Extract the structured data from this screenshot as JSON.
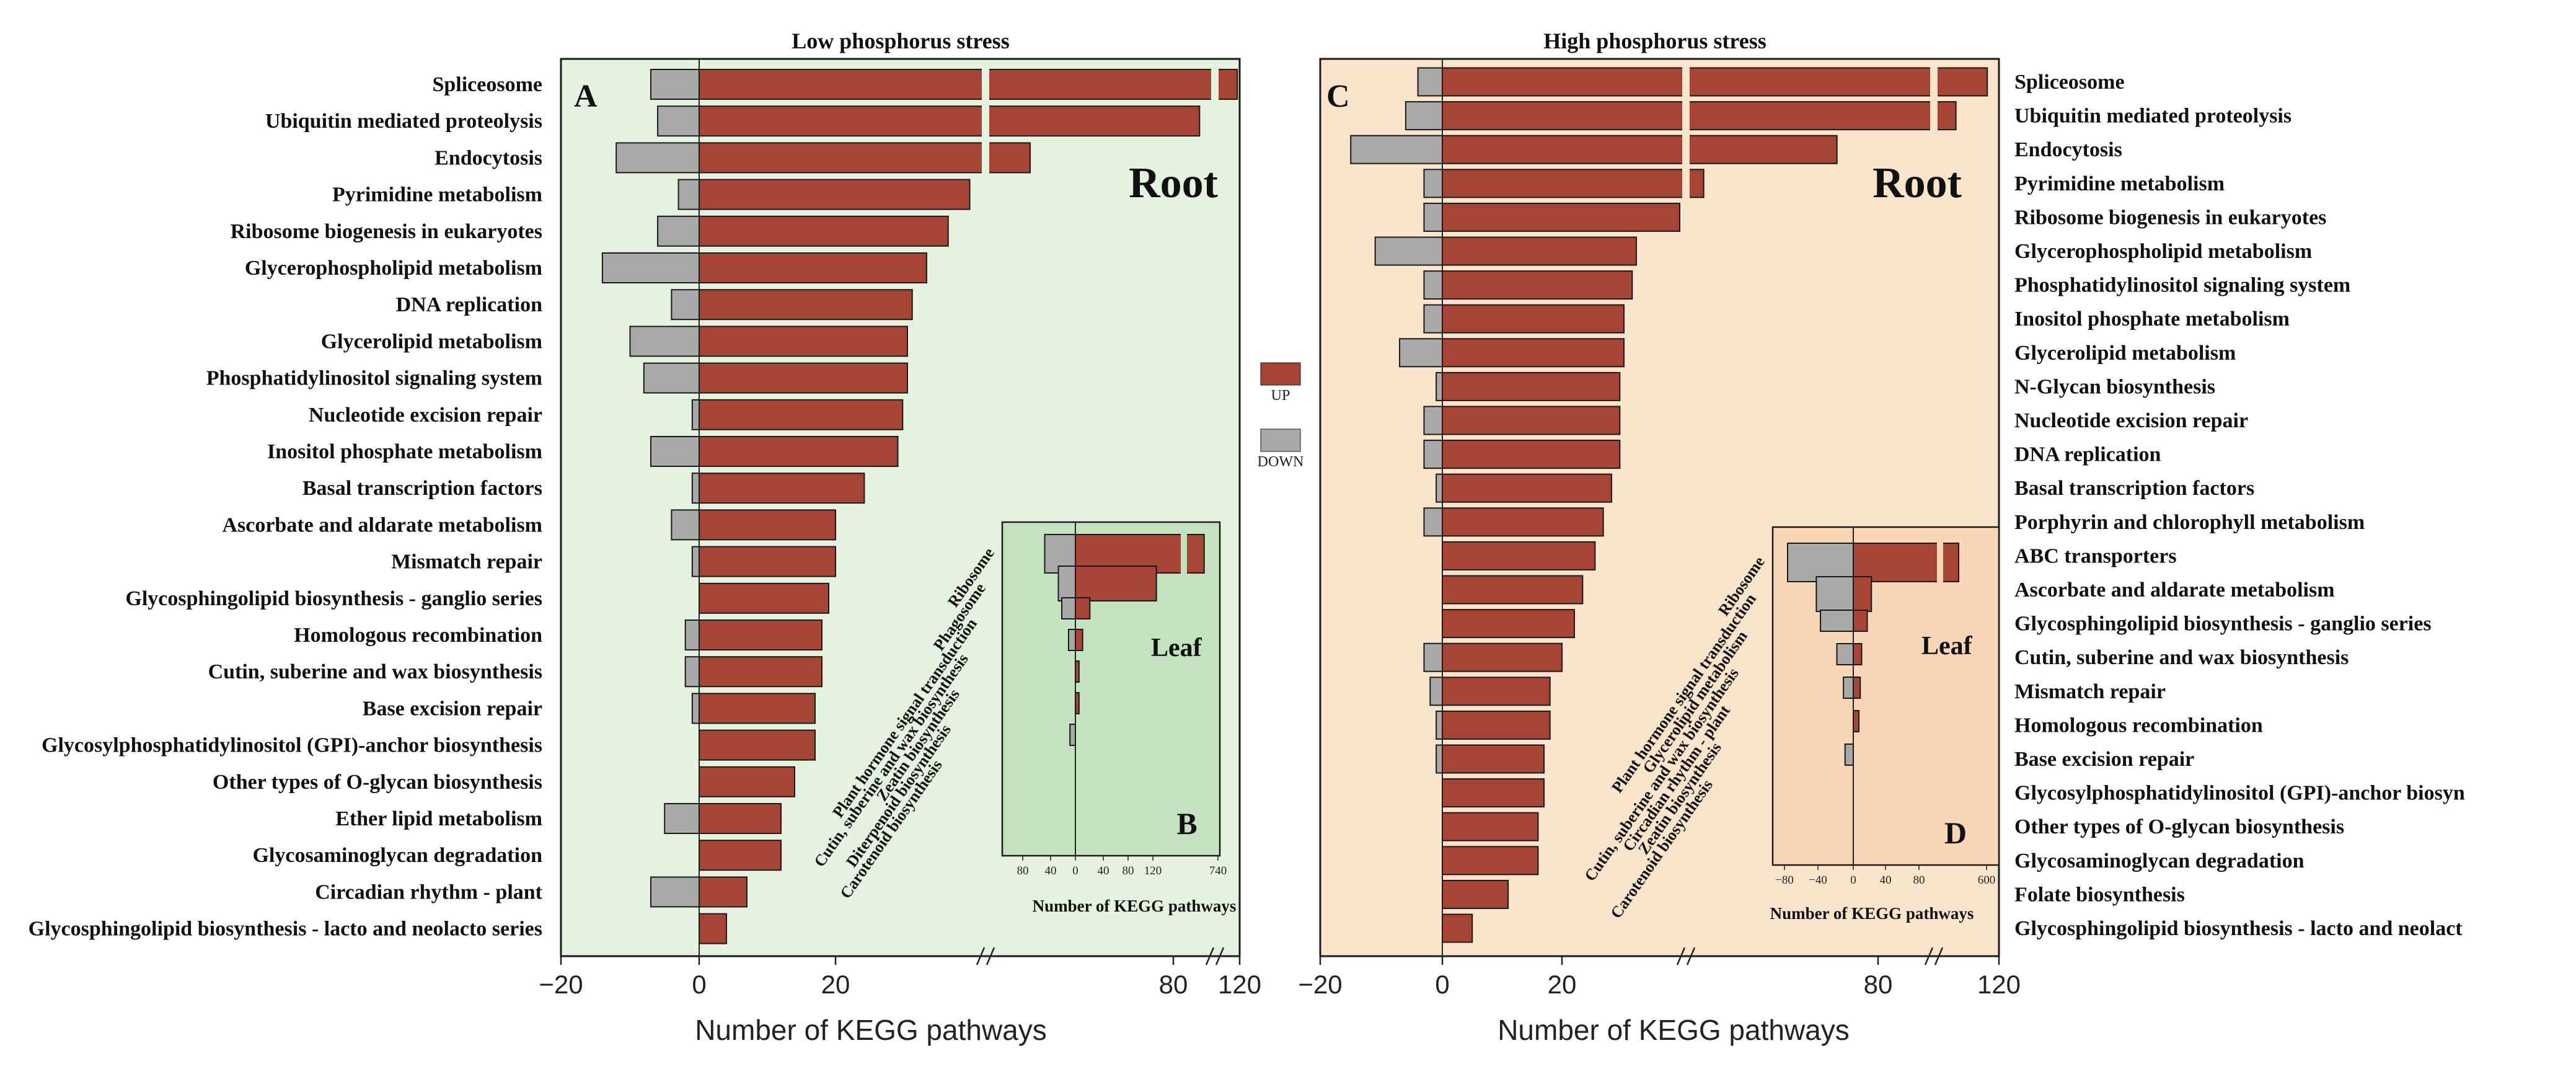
{
  "colors": {
    "up": "#a64436",
    "down": "#a9a9a9",
    "root_bg_A": "#e6f2e0",
    "leaf_bg_B": "#c4e2c0",
    "root_bg_C": "#fbe4cc",
    "leaf_bg_D": "#f8d6b6",
    "edge": "#1a1a1a"
  },
  "legend": {
    "up": "UP",
    "down": "DOWN"
  },
  "chart_data": [
    {
      "panel": "A",
      "type": "bar",
      "orientation": "horizontal",
      "title": "Low phosphorus stress",
      "tissue": "Root",
      "xlabel": "Number of KEGG pathways",
      "xlim": [
        -20,
        120
      ],
      "axis_breaks": true,
      "x_ticks": [
        {
          "v": -20,
          "label": "−20"
        },
        {
          "v": 0,
          "label": "0"
        },
        {
          "v": 20,
          "label": "20"
        },
        {
          "v": 80,
          "label": "80"
        },
        {
          "v": 120,
          "label": "120"
        }
      ],
      "categories": [
        "Spliceosome",
        "Ubiquitin mediated proteolysis",
        "Endocytosis",
        "Pyrimidine metabolism",
        "Ribosome biogenesis in eukaryotes",
        "Glycerophospholipid metabolism",
        "DNA replication",
        "Glycerolipid metabolism",
        "Phosphatidylinositol signaling system",
        "Nucleotide excision repair",
        "Inositol phosphate metabolism",
        "Basal transcription factors",
        "Ascorbate and aldarate metabolism",
        "Mismatch repair",
        "Glycosphingolipid biosynthesis - ganglio series",
        "Homologous recombination",
        "Cutin, suberine and wax biosynthesis",
        "Base excision repair",
        "Glycosylphosphatidylinositol (GPI)-anchor biosynthesis",
        "Other types of O-glycan biosynthesis",
        "Ether lipid metabolism",
        "Glycosaminoglycan degradation",
        "Circadian rhythm - plant",
        "Glycosphingolipid biosynthesis - lacto and neolacto series"
      ],
      "series": [
        {
          "name": "UP",
          "values": [
            105,
            76,
            56,
            48,
            43.5,
            39,
            36,
            35,
            35,
            34,
            33,
            26,
            20,
            20,
            19,
            18,
            18,
            17,
            17,
            14,
            12,
            12,
            7,
            4
          ]
        },
        {
          "name": "DOWN",
          "values": [
            -7,
            -6,
            -12,
            -3,
            -6,
            -14,
            -4,
            -10,
            -8,
            -1,
            -7,
            -1,
            -4,
            -1,
            0,
            -2,
            -2,
            -1,
            0,
            0,
            -5,
            0,
            -7,
            0
          ]
        }
      ]
    },
    {
      "panel": "B",
      "type": "bar",
      "orientation": "horizontal",
      "inset": true,
      "tissue": "Leaf",
      "xlabel": "Number of KEGG pathways",
      "x_ticks": [
        {
          "v": -80,
          "label": "80"
        },
        {
          "v": -40,
          "label": "40"
        },
        {
          "v": 0,
          "label": "0"
        },
        {
          "v": 40,
          "label": "40"
        },
        {
          "v": 80,
          "label": "80"
        },
        {
          "v": 120,
          "label": "120"
        },
        {
          "v": 740,
          "label": "740"
        }
      ],
      "categories": [
        "Ribosome",
        "Phagosome",
        "Plant hormone signal transduction",
        "Cutin, suberine and wax biosynthesis",
        "Zeatin biosynthesis",
        "Diterpenoid biosynthesis",
        "Carotenoid biosynthesis"
      ],
      "series": [
        {
          "name": "UP",
          "values": [
            720,
            112,
            20,
            10,
            5,
            5,
            0
          ]
        },
        {
          "name": "DOWN",
          "values": [
            -45,
            -25,
            -20,
            -10,
            0,
            0,
            -8
          ]
        }
      ]
    },
    {
      "panel": "C",
      "type": "bar",
      "orientation": "horizontal",
      "title": "High phosphorus stress",
      "tissue": "Root",
      "xlabel": "Number of KEGG pathways",
      "xlim": [
        -20,
        120
      ],
      "axis_breaks": true,
      "x_ticks": [
        {
          "v": -20,
          "label": "−20"
        },
        {
          "v": 0,
          "label": "0"
        },
        {
          "v": 20,
          "label": "20"
        },
        {
          "v": 80,
          "label": "80"
        },
        {
          "v": 120,
          "label": "120"
        }
      ],
      "categories": [
        "Spliceosome",
        "Ubiquitin mediated proteolysis",
        "Endocytosis",
        "Pyrimidine metabolism",
        "Ribosome biogenesis in eukaryotes",
        "Glycerophospholipid metabolism",
        "Phosphatidylinositol signaling system",
        "Inositol phosphate metabolism",
        "Glycerolipid metabolism",
        "N-Glycan biosynthesis",
        "Nucleotide excision repair",
        "DNA replication",
        "Basal transcription factors",
        "Porphyrin and chlorophyll metabolism",
        "ABC transporters",
        "Ascorbate and aldarate metabolism",
        "Glycosphingolipid biosynthesis - ganglio series",
        "Cutin, suberine and wax biosynthesis",
        "Mismatch repair",
        "Homologous recombination",
        "Base excision repair",
        "Glycosylphosphatidylinositol (GPI)-anchor biosyn",
        "Other types of O-glycan biosynthesis",
        "Glycosaminoglycan degradation",
        "Folate biosynthesis",
        "Glycosphingolipid biosynthesis - lacto and neolact"
      ],
      "series": [
        {
          "name": "UP",
          "values": [
            110,
            83,
            67,
            52,
            48.5,
            38,
            37,
            35,
            35,
            34,
            34,
            34,
            32,
            30,
            28,
            25,
            23,
            20,
            18,
            18,
            17,
            17,
            16,
            16,
            11,
            5
          ]
        },
        {
          "name": "DOWN",
          "values": [
            -4,
            -6,
            -15,
            -3,
            -3,
            -11,
            -3,
            -3,
            -7,
            -1,
            -3,
            -3,
            -1,
            -3,
            0,
            0,
            0,
            -3,
            -2,
            -1,
            -1,
            0,
            0,
            0,
            0,
            0
          ]
        }
      ]
    },
    {
      "panel": "D",
      "type": "bar",
      "orientation": "horizontal",
      "inset": true,
      "tissue": "Leaf",
      "xlabel": "Number of KEGG pathways",
      "x_ticks": [
        {
          "v": -80,
          "label": "−80"
        },
        {
          "v": -40,
          "label": "−40"
        },
        {
          "v": 0,
          "label": "0"
        },
        {
          "v": 40,
          "label": "40"
        },
        {
          "v": 80,
          "label": "80"
        },
        {
          "v": 600,
          "label": "600"
        }
      ],
      "categories": [
        "Ribosome",
        "Plant hormone signal transduction",
        "Glycerolipid metabolism",
        "Cutin, suberine and wax biosynthesis",
        "Circadian rhythm - plant",
        "Zeatin biosynthesis",
        "Carotenoid biosynthesis"
      ],
      "series": [
        {
          "name": "UP",
          "values": [
            600,
            26,
            20,
            12,
            10,
            8,
            0
          ]
        },
        {
          "name": "DOWN",
          "values": [
            -80,
            -45,
            -40,
            -20,
            -12,
            0,
            -10
          ]
        }
      ]
    }
  ]
}
